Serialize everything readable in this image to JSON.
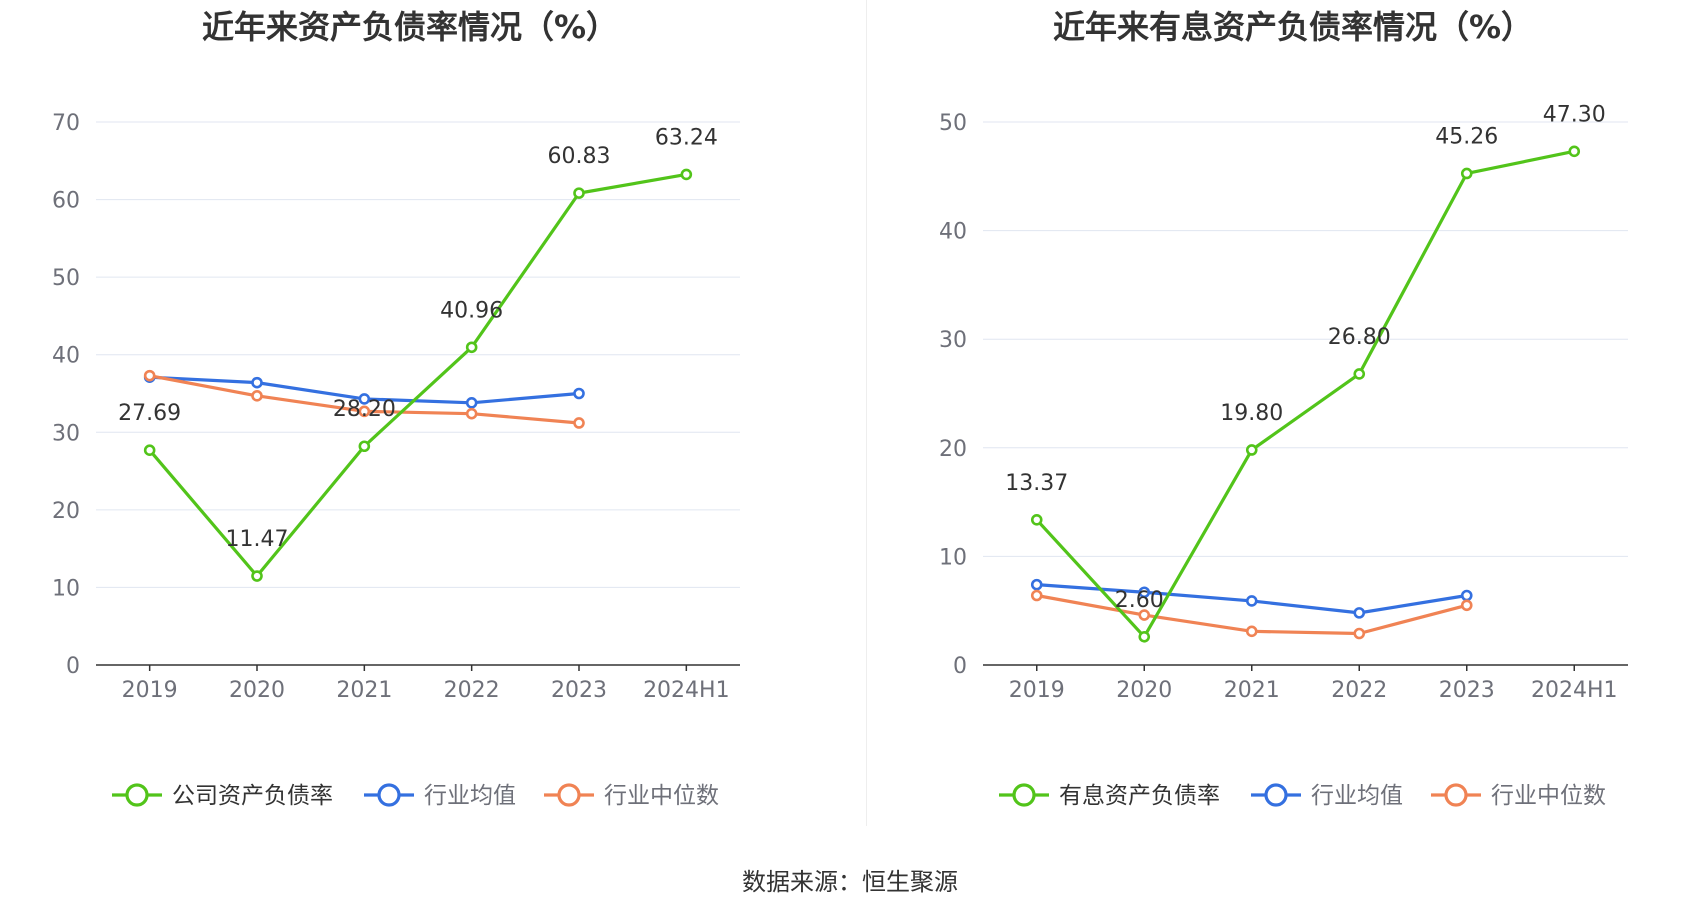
{
  "source": "数据来源：恒生聚源",
  "chart_data": [
    {
      "type": "line",
      "title": "近年来资产负债率情况（%）",
      "categories": [
        "2019",
        "2020",
        "2021",
        "2022",
        "2023",
        "2024H1"
      ],
      "ylim": [
        0,
        70
      ],
      "yticks": [
        0,
        10,
        20,
        30,
        40,
        50,
        60,
        70
      ],
      "grid": true,
      "legend_position": "bottom",
      "series": [
        {
          "name": "公司资产负债率",
          "color": "#52c41a",
          "labeled": true,
          "values": [
            27.69,
            11.47,
            28.2,
            40.96,
            60.83,
            63.24
          ],
          "labels": [
            "27.69",
            "11.47",
            "28.20",
            "40.96",
            "60.83",
            "63.24"
          ]
        },
        {
          "name": "行业均值",
          "color": "#3470e0",
          "labeled": false,
          "values": [
            37.1,
            36.4,
            34.3,
            33.8,
            35.0,
            null
          ]
        },
        {
          "name": "行业中位数",
          "color": "#f08354",
          "labeled": false,
          "values": [
            37.3,
            34.7,
            32.7,
            32.4,
            31.2,
            null
          ]
        }
      ]
    },
    {
      "type": "line",
      "title": "近年来有息资产负债率情况（%）",
      "categories": [
        "2019",
        "2020",
        "2021",
        "2022",
        "2023",
        "2024H1"
      ],
      "ylim": [
        0,
        50
      ],
      "yticks": [
        0,
        10,
        20,
        30,
        40,
        50
      ],
      "grid": true,
      "legend_position": "bottom",
      "series": [
        {
          "name": "有息资产负债率",
          "color": "#52c41a",
          "labeled": true,
          "values": [
            13.37,
            2.6,
            19.8,
            26.8,
            45.26,
            47.3
          ],
          "labels": [
            "13.37",
            "2.60",
            "19.80",
            "26.80",
            "45.26",
            "47.30"
          ]
        },
        {
          "name": "行业均值",
          "color": "#3470e0",
          "labeled": false,
          "values": [
            7.4,
            6.7,
            5.9,
            4.8,
            6.4,
            null
          ]
        },
        {
          "name": "行业中位数",
          "color": "#f08354",
          "labeled": false,
          "values": [
            6.4,
            4.6,
            3.1,
            2.9,
            5.5,
            null
          ]
        }
      ]
    }
  ]
}
